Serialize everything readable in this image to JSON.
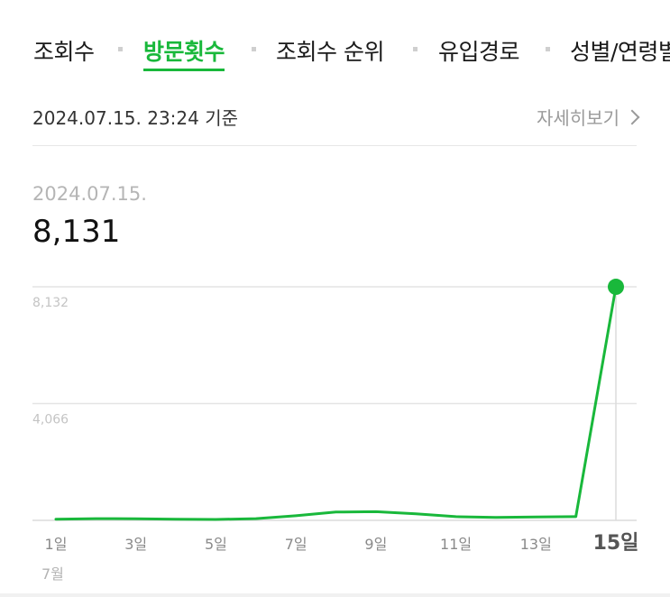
{
  "tabs": [
    {
      "label": "조회수",
      "active": false
    },
    {
      "label": "방문횟수",
      "active": true
    },
    {
      "label": "조회수 순위",
      "active": false
    },
    {
      "label": "유입경로",
      "active": false
    },
    {
      "label": "성별/연령별",
      "active": false
    }
  ],
  "basis_text": "2024.07.15. 23:24 기준",
  "detail_link": "자세히보기",
  "selected": {
    "date": "2024.07.15.",
    "value": "8,131"
  },
  "colors": {
    "accent": "#19b83b",
    "grid": "#e4e4e4",
    "tick": "#8a8a8a"
  },
  "chart_data": {
    "type": "line",
    "x": [
      1,
      2,
      3,
      4,
      5,
      6,
      7,
      8,
      9,
      10,
      11,
      12,
      13,
      14,
      15
    ],
    "values": [
      40,
      60,
      55,
      40,
      30,
      60,
      160,
      290,
      300,
      230,
      130,
      100,
      120,
      130,
      8131
    ],
    "ylim": [
      0,
      8132
    ],
    "y_ticks": [
      {
        "value": 8132,
        "label": "8,132"
      },
      {
        "value": 4066,
        "label": "4,066"
      }
    ],
    "x_ticks": [
      {
        "x": 1,
        "label": "1일"
      },
      {
        "x": 3,
        "label": "3일"
      },
      {
        "x": 5,
        "label": "5일"
      },
      {
        "x": 7,
        "label": "7일"
      },
      {
        "x": 9,
        "label": "9일"
      },
      {
        "x": 11,
        "label": "11일"
      },
      {
        "x": 13,
        "label": "13일"
      },
      {
        "x": 15,
        "label": "15일",
        "highlight": true
      }
    ],
    "month_label": "7월",
    "highlight_x": 15,
    "grid": true
  }
}
